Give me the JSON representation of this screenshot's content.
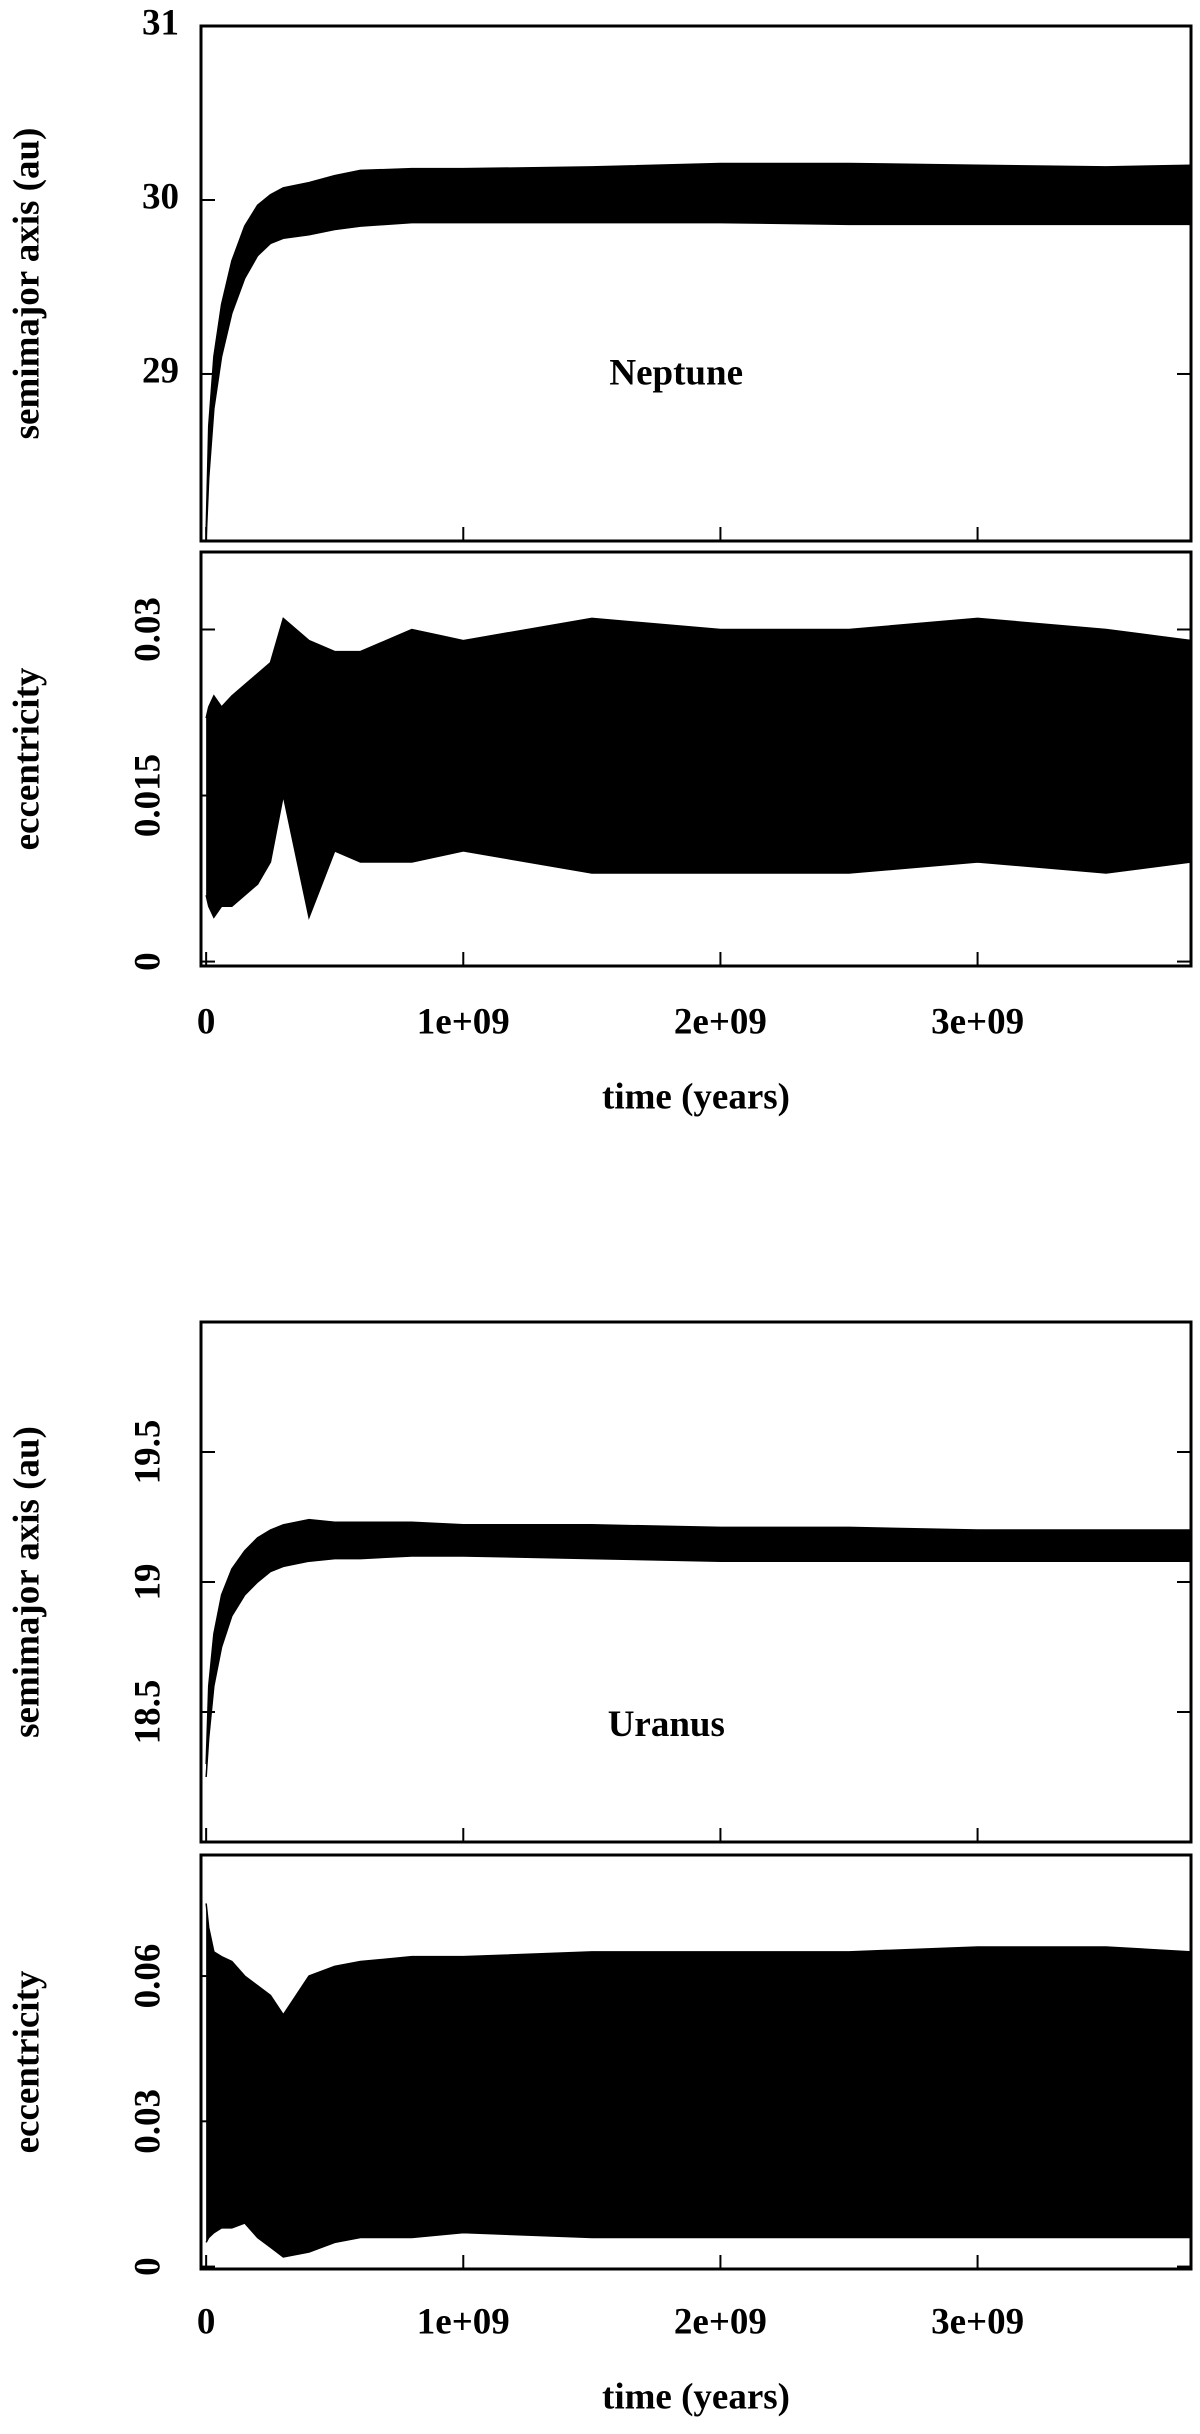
{
  "chart_data": [
    {
      "type": "area",
      "ylabel": "semimajor axis (au)",
      "annotation": "Neptune",
      "x": [
        0,
        10000000,
        30000000,
        60000000,
        100000000,
        150000000,
        200000000,
        250000000,
        300000000,
        400000000,
        500000000,
        600000000,
        800000000,
        1000000000,
        1500000000,
        2000000000,
        2500000000,
        3000000000,
        3500000000,
        3830000000
      ],
      "series": [
        {
          "color": "#000000",
          "values": [
            28.1,
            28.7,
            29.1,
            29.4,
            29.65,
            29.85,
            29.97,
            30.03,
            30.07,
            30.1,
            30.14,
            30.17,
            30.18,
            30.18,
            30.19,
            30.21,
            30.21,
            30.2,
            30.19,
            30.2
          ]
        },
        {
          "color": "#000000",
          "values": [
            28.05,
            28.4,
            28.8,
            29.1,
            29.35,
            29.55,
            29.68,
            29.75,
            29.78,
            29.8,
            29.83,
            29.85,
            29.87,
            29.87,
            29.87,
            29.87,
            29.86,
            29.86,
            29.86,
            29.86
          ]
        }
      ],
      "xlim": [
        -20000000,
        3830000000
      ],
      "ylim": [
        28.04,
        31
      ],
      "yticks": [
        29,
        30,
        31
      ]
    },
    {
      "type": "area",
      "ylabel": "eccentricity",
      "xlabel": "time (years)",
      "x": [
        0,
        10000000,
        30000000,
        60000000,
        100000000,
        150000000,
        200000000,
        250000000,
        300000000,
        400000000,
        500000000,
        600000000,
        800000000,
        1000000000,
        1500000000,
        2000000000,
        2500000000,
        3000000000,
        3500000000,
        3830000000
      ],
      "series": [
        {
          "color": "#000000",
          "values": [
            0.022,
            0.023,
            0.024,
            0.023,
            0.024,
            0.025,
            0.026,
            0.027,
            0.031,
            0.029,
            0.028,
            0.028,
            0.03,
            0.029,
            0.031,
            0.03,
            0.03,
            0.031,
            0.03,
            0.029
          ]
        },
        {
          "color": "#000000",
          "values": [
            0.006,
            0.005,
            0.004,
            0.005,
            0.005,
            0.006,
            0.007,
            0.009,
            0.015,
            0.004,
            0.01,
            0.009,
            0.009,
            0.01,
            0.008,
            0.008,
            0.008,
            0.009,
            0.008,
            0.009
          ]
        }
      ],
      "xlim": [
        -20000000,
        3830000000
      ],
      "xticks": [
        0,
        {
          "value": 1000000000,
          "label": "1e+09"
        },
        {
          "value": 2000000000,
          "label": "2e+09"
        },
        {
          "value": 3000000000,
          "label": "3e+09"
        }
      ],
      "ylim": [
        -0.0004,
        0.037
      ],
      "yticks": [
        0,
        0.015,
        0.03
      ]
    },
    {
      "type": "area",
      "ylabel": "semimajor axis (au)",
      "annotation": "Uranus",
      "x": [
        0,
        10000000,
        30000000,
        60000000,
        100000000,
        150000000,
        200000000,
        250000000,
        300000000,
        400000000,
        500000000,
        600000000,
        800000000,
        1000000000,
        1500000000,
        2000000000,
        2500000000,
        3000000000,
        3500000000,
        3830000000
      ],
      "series": [
        {
          "color": "#000000",
          "values": [
            18.3,
            18.6,
            18.8,
            18.95,
            19.05,
            19.12,
            19.17,
            19.2,
            19.22,
            19.24,
            19.23,
            19.23,
            19.23,
            19.22,
            19.22,
            19.21,
            19.21,
            19.2,
            19.2,
            19.2
          ]
        },
        {
          "color": "#000000",
          "values": [
            18.25,
            18.4,
            18.6,
            18.75,
            18.87,
            18.95,
            19.0,
            19.04,
            19.06,
            19.08,
            19.09,
            19.09,
            19.1,
            19.1,
            19.09,
            19.08,
            19.08,
            19.08,
            19.08,
            19.08
          ]
        }
      ],
      "xlim": [
        -20000000,
        3830000000
      ],
      "ylim": [
        18,
        20
      ],
      "yticks": [
        18.5,
        19,
        19.5
      ]
    },
    {
      "type": "area",
      "ylabel": "eccentricity",
      "xlabel": "time (years)",
      "x": [
        0,
        10000000,
        30000000,
        60000000,
        100000000,
        150000000,
        200000000,
        250000000,
        300000000,
        400000000,
        500000000,
        600000000,
        800000000,
        1000000000,
        1500000000,
        2000000000,
        2500000000,
        3000000000,
        3500000000,
        3830000000
      ],
      "series": [
        {
          "color": "#000000",
          "values": [
            0.075,
            0.07,
            0.065,
            0.064,
            0.063,
            0.06,
            0.058,
            0.056,
            0.052,
            0.06,
            0.062,
            0.063,
            0.064,
            0.064,
            0.065,
            0.065,
            0.065,
            0.066,
            0.066,
            0.065
          ]
        },
        {
          "color": "#000000",
          "values": [
            0.005,
            0.006,
            0.007,
            0.008,
            0.008,
            0.009,
            0.006,
            0.004,
            0.002,
            0.003,
            0.005,
            0.006,
            0.006,
            0.007,
            0.006,
            0.006,
            0.006,
            0.006,
            0.006,
            0.006
          ]
        }
      ],
      "xlim": [
        -20000000,
        3830000000
      ],
      "xticks": [
        0,
        {
          "value": 1000000000,
          "label": "1e+09"
        },
        {
          "value": 2000000000,
          "label": "2e+09"
        },
        {
          "value": 3000000000,
          "label": "3e+09"
        }
      ],
      "ylim": [
        -0.0005,
        0.085
      ],
      "yticks": [
        0,
        0.03,
        0.06
      ]
    }
  ]
}
